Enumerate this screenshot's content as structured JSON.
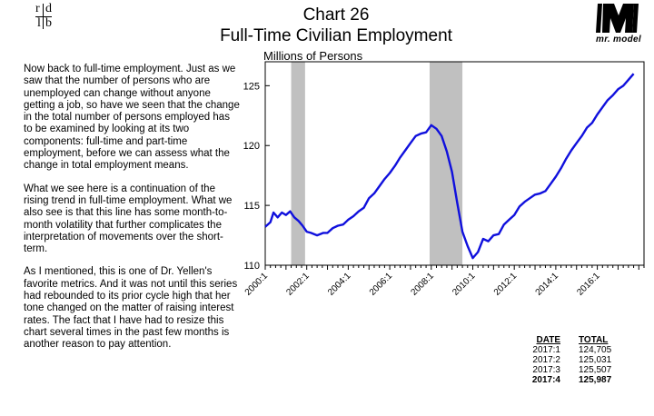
{
  "logo": {
    "r": "r",
    "d": "d",
    "l": "l",
    "b": "b"
  },
  "header": {
    "chart_number": "Chart 26",
    "title": "Full-Time Civilian Employment"
  },
  "brand": {
    "name": "mr. model"
  },
  "commentary": {
    "p1": "Now back to full-time employment.  Just as we saw that the number of persons who are unemployed can change without anyone getting a job, so have we seen that the change in the total number of persons employed has to be examined by looking at its two components: full-time and part-time employment, before we can assess what the change in total employment means.",
    "p2": "What we see here is a continuation of the rising trend in full-time employment. What we also see is that this line has some month-to-month volatility that further complicates the interpretation of movements over the short-term.",
    "p3": "As I mentioned, this is one of Dr. Yellen's favorite metrics. And it was not until this series had rebounded to its prior cycle high that her tone changed on the matter of raising interest rates. The fact that I have had to resize this chart several times in the past few months is another reason to pay attention."
  },
  "chart_data": {
    "type": "line",
    "title": "Full-Time Civilian Employment",
    "ylabel": "Millions of Persons",
    "xlabel": "",
    "ylim": [
      110,
      127
    ],
    "yticks": [
      110,
      115,
      120,
      125
    ],
    "xlim": [
      2000,
      2018.25
    ],
    "xticks": [
      "2000:1",
      "2002:1",
      "2004:1",
      "2006:1",
      "2008:1",
      "2010:1",
      "2012:1",
      "2014:1",
      "2016:1"
    ],
    "xtick_values": [
      2000,
      2002,
      2004,
      2006,
      2008,
      2010,
      2012,
      2014,
      2016
    ],
    "recessions": [
      [
        2001.25,
        2001.92
      ],
      [
        2007.92,
        2009.5
      ]
    ],
    "series": [
      {
        "name": "Full-Time Civilian Employment",
        "color": "#1010dd",
        "x": [
          2000.0,
          2000.25,
          2000.4,
          2000.6,
          2000.8,
          2001.0,
          2001.2,
          2001.4,
          2001.6,
          2001.8,
          2002.0,
          2002.2,
          2002.5,
          2002.8,
          2003.0,
          2003.25,
          2003.5,
          2003.75,
          2004.0,
          2004.25,
          2004.5,
          2004.75,
          2005.0,
          2005.25,
          2005.5,
          2005.75,
          2006.0,
          2006.25,
          2006.5,
          2006.75,
          2007.0,
          2007.25,
          2007.5,
          2007.75,
          2008.0,
          2008.25,
          2008.5,
          2008.75,
          2009.0,
          2009.25,
          2009.5,
          2009.75,
          2010.0,
          2010.25,
          2010.5,
          2010.75,
          2011.0,
          2011.25,
          2011.5,
          2011.75,
          2012.0,
          2012.25,
          2012.5,
          2012.75,
          2013.0,
          2013.25,
          2013.5,
          2013.75,
          2014.0,
          2014.25,
          2014.5,
          2014.75,
          2015.0,
          2015.25,
          2015.5,
          2015.75,
          2016.0,
          2016.25,
          2016.5,
          2016.75,
          2017.0,
          2017.25,
          2017.5,
          2017.75
        ],
        "values": [
          113.2,
          113.6,
          114.4,
          114.0,
          114.4,
          114.2,
          114.5,
          114.0,
          113.7,
          113.3,
          112.8,
          112.7,
          112.5,
          112.7,
          112.7,
          113.1,
          113.3,
          113.4,
          113.8,
          114.1,
          114.5,
          114.8,
          115.6,
          116.0,
          116.6,
          117.2,
          117.7,
          118.3,
          119.0,
          119.6,
          120.2,
          120.8,
          121.0,
          121.1,
          121.7,
          121.4,
          120.8,
          119.5,
          117.8,
          115.2,
          112.8,
          111.6,
          110.6,
          111.1,
          112.2,
          112.0,
          112.5,
          112.6,
          113.4,
          113.8,
          114.2,
          114.9,
          115.3,
          115.6,
          115.9,
          116.0,
          116.2,
          116.8,
          117.4,
          118.1,
          118.9,
          119.6,
          120.2,
          120.8,
          121.5,
          121.9,
          122.6,
          123.2,
          123.8,
          124.2,
          124.7,
          125.0,
          125.5,
          126.0
        ]
      }
    ]
  },
  "table": {
    "headers": {
      "date": "DATE",
      "total": "TOTAL"
    },
    "rows": [
      {
        "date": "2017:1",
        "total": "124,705"
      },
      {
        "date": "2017:2",
        "total": "125,031"
      },
      {
        "date": "2017:3",
        "total": "125,507"
      },
      {
        "date": "2017:4",
        "total": "125,987"
      }
    ]
  }
}
